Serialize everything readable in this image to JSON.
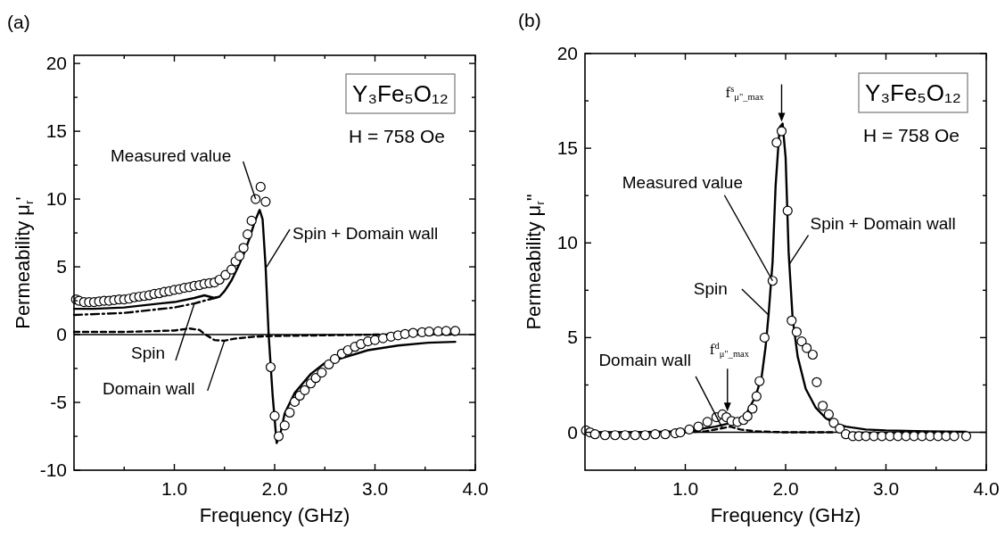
{
  "chart_data": [
    {
      "type": "line",
      "title": "(a)",
      "xlabel": "Frequency (GHz)",
      "ylabel": "Permeability μ$_{r}$'",
      "xlim": [
        0,
        4
      ],
      "xticks": [
        {
          "value": 0.5,
          "label": null
        },
        {
          "value": 1,
          "label": "1.0"
        },
        {
          "value": 1.5,
          "label": null
        },
        {
          "value": 2,
          "label": "2.0"
        },
        {
          "value": 2.5,
          "label": null
        },
        {
          "value": 3,
          "label": "3.0"
        },
        {
          "value": 3.5,
          "label": null
        },
        {
          "value": 4,
          "label": "4.0"
        }
      ],
      "ylim": [
        -10,
        20.6
      ],
      "yticks": [
        -10,
        {
          "value": -7.5,
          "label": null
        },
        -5,
        {
          "value": -2.5,
          "label": null
        },
        0,
        {
          "value": 2.5,
          "label": null
        },
        5,
        {
          "value": 7.5,
          "label": null
        },
        10,
        {
          "value": 12.5,
          "label": null
        },
        15,
        {
          "value": 17.5,
          "label": null
        },
        20
      ],
      "ref_lines": [
        {
          "axis": "y",
          "value": 0,
          "color": "#000000",
          "line_style": "solid"
        }
      ],
      "series": [
        {
          "type": "scatter",
          "marker": "circle",
          "color": "#000000",
          "x": [
            0.02,
            0.05,
            0.1,
            0.15,
            0.2,
            0.25,
            0.3,
            0.35,
            0.4,
            0.45,
            0.5,
            0.55,
            0.6,
            0.65,
            0.7,
            0.75,
            0.8,
            0.85,
            0.9,
            0.95,
            1.0,
            1.05,
            1.1,
            1.15,
            1.2,
            1.25,
            1.3,
            1.35,
            1.4,
            1.45,
            1.51,
            1.57,
            1.61,
            1.65,
            1.69,
            1.73,
            1.77,
            1.81,
            1.86,
            1.91,
            1.96,
            2.0,
            2.04,
            2.1,
            2.15,
            2.2,
            2.25,
            2.3,
            2.36,
            2.41,
            2.47,
            2.54,
            2.6,
            2.67,
            2.73,
            2.8,
            2.86,
            2.93,
            3.0,
            3.08,
            3.16,
            3.23,
            3.3,
            3.38,
            3.47,
            3.54,
            3.63,
            3.71,
            3.8
          ],
          "values": [
            2.6,
            2.5,
            2.4,
            2.4,
            2.4,
            2.45,
            2.5,
            2.5,
            2.55,
            2.6,
            2.6,
            2.65,
            2.75,
            2.8,
            2.85,
            2.9,
            3.0,
            3.05,
            3.15,
            3.2,
            3.3,
            3.35,
            3.45,
            3.5,
            3.6,
            3.65,
            3.75,
            3.8,
            3.85,
            4.05,
            4.4,
            4.8,
            5.4,
            5.8,
            6.4,
            7.4,
            8.4,
            10.0,
            10.9,
            9.8,
            -2.4,
            -6.0,
            -7.5,
            -6.7,
            -5.75,
            -4.96,
            -4.5,
            -4.1,
            -3.6,
            -3.2,
            -2.8,
            -2.2,
            -1.8,
            -1.4,
            -1.15,
            -0.9,
            -0.7,
            -0.5,
            -0.4,
            -0.27,
            -0.15,
            -0.05,
            0.05,
            0.13,
            0.18,
            0.22,
            0.24,
            0.27,
            0.27
          ]
        },
        {
          "type": "line",
          "line_style": "solid",
          "color": "#000000",
          "x": [
            0,
            0.2,
            0.5,
            0.86,
            1.0,
            1.2,
            1.3,
            1.4,
            1.45,
            1.5,
            1.57,
            1.63,
            1.69,
            1.75,
            1.8,
            1.85,
            1.88,
            1.91,
            1.94,
            1.98,
            2.02,
            2.06,
            2.1,
            2.2,
            2.36,
            2.49,
            2.73,
            2.93,
            3.23,
            3.53,
            3.8
          ],
          "values": [
            1.9,
            1.9,
            2.0,
            2.3,
            2.4,
            2.7,
            2.9,
            2.7,
            2.8,
            3.2,
            4.0,
            4.9,
            5.9,
            7.1,
            8.3,
            9.2,
            8.5,
            5.0,
            0,
            -4.5,
            -8.0,
            -7.2,
            -5.8,
            -4.3,
            -2.9,
            -2.15,
            -1.6,
            -1.15,
            -0.8,
            -0.6,
            -0.53
          ]
        },
        {
          "type": "line",
          "line_style": "dashdot",
          "color": "#000000",
          "x": [
            0,
            0.5,
            1.0,
            1.2,
            1.35,
            1.45
          ],
          "values": [
            1.45,
            1.6,
            2.0,
            2.3,
            2.6,
            2.8
          ]
        },
        {
          "type": "line",
          "line_style": "dashed",
          "color": "#000000",
          "x": [
            0,
            0.5,
            1.0,
            1.15,
            1.25,
            1.3,
            1.4,
            1.5,
            1.6,
            1.8,
            2.0,
            2.5,
            3.0,
            3.8
          ],
          "values": [
            0.2,
            0.2,
            0.3,
            0.45,
            0.35,
            0.05,
            -0.4,
            -0.45,
            -0.3,
            -0.15,
            -0.1,
            -0.05,
            0,
            0
          ]
        }
      ],
      "annotations": [
        "Y₃Fe₅O₁₂",
        "H = 758 Oe",
        {
          "text": "Measured value",
          "x": 1.81,
          "y": 10.0
        },
        {
          "text": "Spin + Domain wall",
          "x": 1.92,
          "y": 5.0
        },
        {
          "text": "Spin",
          "x": 1.2,
          "y": 2.3
        },
        {
          "text": "Domain wall",
          "x": 1.5,
          "y": -0.45
        }
      ]
    },
    {
      "type": "line",
      "title": "(b)",
      "xlabel": "Frequency (GHz)",
      "ylabel": "Permeability μ$_{r}$\"",
      "xlim": [
        0,
        4
      ],
      "xticks": [
        {
          "value": 0.5,
          "label": null
        },
        {
          "value": 1,
          "label": "1.0"
        },
        {
          "value": 1.5,
          "label": null
        },
        {
          "value": 2,
          "label": "2.0"
        },
        {
          "value": 2.5,
          "label": null
        },
        {
          "value": 3,
          "label": "3.0"
        },
        {
          "value": 3.5,
          "label": null
        },
        {
          "value": 4,
          "label": "4.0"
        }
      ],
      "ylim": [
        -2,
        20
      ],
      "yticks": [
        0,
        {
          "value": 2.5,
          "label": null
        },
        5,
        {
          "value": 7.5,
          "label": null
        },
        10,
        {
          "value": 12.5,
          "label": null
        },
        15,
        {
          "value": 17.5,
          "label": null
        },
        20
      ],
      "ref_lines": [
        {
          "axis": "y",
          "value": 0,
          "color": "#000000",
          "line_style": "solid"
        }
      ],
      "series": [
        {
          "type": "scatter",
          "marker": "circle",
          "color": "#000000",
          "x": [
            0.01,
            0.05,
            0.1,
            0.2,
            0.3,
            0.4,
            0.5,
            0.6,
            0.7,
            0.8,
            0.9,
            0.95,
            1.04,
            1.13,
            1.22,
            1.31,
            1.37,
            1.41,
            1.46,
            1.52,
            1.58,
            1.62,
            1.67,
            1.71,
            1.74,
            1.79,
            1.87,
            1.91,
            1.96,
            2.02,
            2.06,
            2.11,
            2.16,
            2.21,
            2.27,
            2.31,
            2.37,
            2.43,
            2.48,
            2.54,
            2.6,
            2.67,
            2.73,
            2.8,
            2.88,
            2.96,
            3.04,
            3.12,
            3.2,
            3.28,
            3.36,
            3.44,
            3.52,
            3.6,
            3.68,
            3.8
          ],
          "values": [
            0.1,
            0,
            -0.1,
            -0.15,
            -0.15,
            -0.15,
            -0.15,
            -0.15,
            -0.1,
            -0.1,
            -0.05,
            0,
            0.15,
            0.3,
            0.55,
            0.8,
            0.95,
            0.8,
            0.6,
            0.55,
            0.65,
            0.85,
            1.25,
            1.9,
            2.7,
            5.0,
            8.0,
            15.3,
            15.9,
            11.7,
            5.9,
            5.3,
            4.8,
            4.45,
            4.1,
            2.65,
            1.4,
            0.95,
            0.5,
            0.2,
            -0.1,
            -0.2,
            -0.2,
            -0.2,
            -0.2,
            -0.2,
            -0.2,
            -0.2,
            -0.2,
            -0.2,
            -0.2,
            -0.2,
            -0.2,
            -0.2,
            -0.2,
            -0.2
          ]
        },
        {
          "type": "line",
          "line_style": "solid",
          "color": "#000000",
          "x": [
            0,
            0.5,
            1.0,
            1.3,
            1.5,
            1.6,
            1.7,
            1.76,
            1.8,
            1.83,
            1.87,
            1.9,
            1.94,
            1.97,
            2.0,
            2.03,
            2.07,
            2.12,
            2.2,
            2.3,
            2.4,
            2.5,
            2.6,
            2.8,
            3.0,
            3.4,
            3.8
          ],
          "values": [
            0,
            0,
            0.05,
            0.3,
            0.55,
            0.9,
            1.9,
            2.9,
            4.5,
            6.2,
            9.0,
            13.0,
            16.1,
            16.3,
            14.5,
            9.5,
            6.0,
            4.0,
            2.3,
            1.3,
            0.75,
            0.45,
            0.3,
            0.15,
            0.1,
            0.05,
            0.03
          ]
        },
        {
          "type": "line",
          "line_style": "dashed",
          "color": "#000000",
          "x": [
            1.0,
            1.2,
            1.35,
            1.45,
            1.55,
            1.7,
            2.0,
            2.5
          ],
          "values": [
            0,
            0.05,
            0.2,
            0.3,
            0.15,
            0.05,
            0,
            0
          ]
        }
      ],
      "annotations": [
        "Y₃Fe₅O₁₂",
        "H = 758 Oe",
        {
          "text": "f$^{s}$$_{μ\"_max}$",
          "x": 1.96,
          "y": 16.3
        },
        {
          "text": "f$^{d}$$_{μ\"_max}$",
          "x": 1.42,
          "y": 1.0
        },
        {
          "text": "Measured value",
          "x": 1.87,
          "y": 8.0
        },
        {
          "text": "Spin + Domain wall",
          "x": 2.04,
          "y": 8.9
        },
        {
          "text": "Spin",
          "x": 1.83,
          "y": 6.2
        },
        {
          "text": "Domain wall",
          "x": 1.37,
          "y": 0.22
        }
      ]
    }
  ]
}
